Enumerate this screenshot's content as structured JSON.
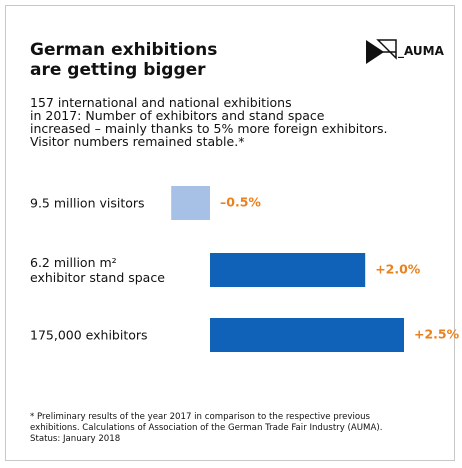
{
  "chart_data": {
    "type": "barh",
    "title": "German exhibitions\nare getting bigger",
    "logo": "_AUMA",
    "subtitle": "157 international and national exhibitions\nin 2017: Number of exhibitors and stand space\nincreased – mainly thanks to 5% more foreign exhibitors.\nVisitor numbers remained stable.*",
    "categories": [
      "9.5 million visitors",
      "6.2 million m²\nexhibitor stand space",
      "175,000 exhibitors"
    ],
    "values": [
      -0.5,
      2.0,
      2.5
    ],
    "value_labels": [
      "–0.5%",
      "+2.0%",
      "+2.5%"
    ],
    "colors": [
      "#a7c1e6",
      "#0f62b8",
      "#0f62b8"
    ],
    "label_color": "#e8811f",
    "footnote": "* Preliminary results of the year 2017 in comparison to the respective previous\nexhibitions. Calculations of Association of the German Trade Fair Industry (AUMA).\nStatus: January 2018"
  }
}
